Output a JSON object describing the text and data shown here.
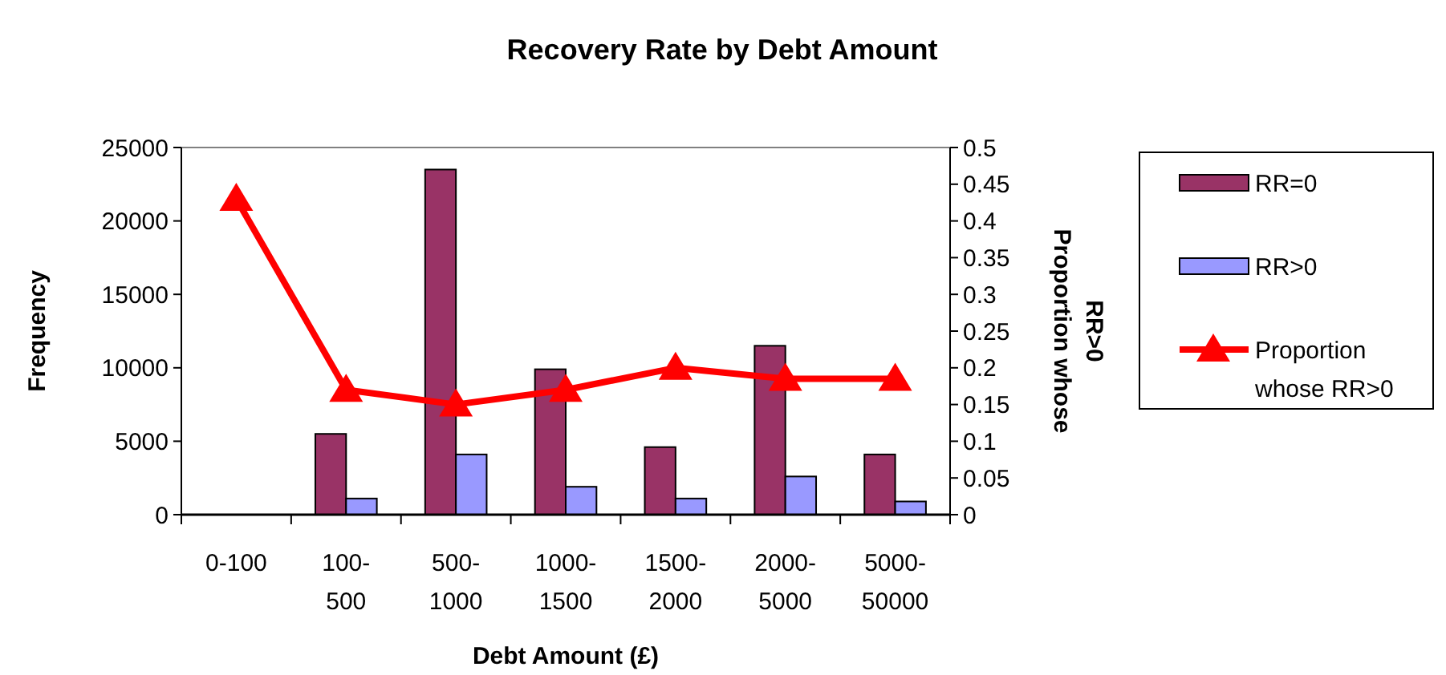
{
  "chart_data": {
    "type": "bar",
    "title": "Recovery Rate by Debt Amount",
    "xlabel": "Debt Amount (£)",
    "ylabel": "Frequency",
    "y2label": "Proportion whose RR>0",
    "categories": [
      "0-100",
      "100-500",
      "500-1000",
      "1000-1500",
      "1500-2000",
      "2000-5000",
      "5000-50000"
    ],
    "series": [
      {
        "name": "RR=0",
        "color": "#993366",
        "values": [
          null,
          5500,
          23500,
          9900,
          4600,
          11500,
          4100
        ]
      },
      {
        "name": "RR>0",
        "color": "#9999ff",
        "values": [
          null,
          1100,
          4100,
          1900,
          1100,
          2600,
          900
        ]
      },
      {
        "name": "Proportion whose RR>0",
        "type": "line",
        "axis": "y2",
        "color": "#ff0000",
        "marker": "triangle",
        "values": [
          0.43,
          0.17,
          0.15,
          0.17,
          0.2,
          0.185,
          0.185
        ]
      }
    ],
    "ylim": [
      0,
      25000
    ],
    "yticks": [
      0,
      5000,
      10000,
      15000,
      20000,
      25000
    ],
    "y2lim": [
      0,
      0.5
    ],
    "y2ticks": [
      0,
      0.05,
      0.1,
      0.15,
      0.2,
      0.25,
      0.3,
      0.35,
      0.4,
      0.45,
      0.5
    ],
    "grid": false,
    "legend": "right"
  }
}
